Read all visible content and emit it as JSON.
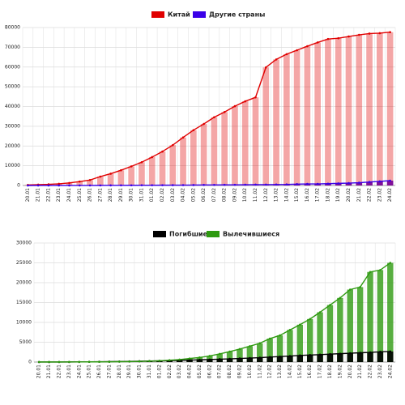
{
  "chart_data": [
    {
      "type": "bar-line",
      "legend": "top",
      "grid": true,
      "categories": [
        "20.01",
        "21.01",
        "22.01",
        "23.01",
        "24.01",
        "25.01",
        "26.01",
        "27.01",
        "28.01",
        "29.01",
        "30.01",
        "31.01",
        "01.02",
        "02.02",
        "03.02",
        "04.02",
        "05.02",
        "06.02",
        "07.02",
        "08.02",
        "09.02",
        "10.02",
        "11.02",
        "12.02",
        "13.02",
        "14.02",
        "15.02",
        "16.02",
        "17.02",
        "18.02",
        "19.02",
        "20.02",
        "21.02",
        "22.02",
        "23.02",
        "24.02"
      ],
      "ylim": [
        0,
        80000
      ],
      "yticks": [
        0,
        10000,
        20000,
        30000,
        40000,
        50000,
        60000,
        70000,
        80000
      ],
      "series": [
        {
          "name": "Китай",
          "color": "#e00000",
          "values": [
            291,
            440,
            571,
            830,
            1287,
            1975,
            2744,
            4515,
            5974,
            7711,
            9692,
            11791,
            14380,
            17205,
            20438,
            24324,
            28018,
            31161,
            34546,
            37198,
            40171,
            42638,
            44653,
            59804,
            63851,
            66492,
            68500,
            70548,
            72436,
            74185,
            74576,
            75465,
            76288,
            76936,
            77150,
            77658
          ]
        },
        {
          "name": "Другие страны",
          "color": "#3a00e8",
          "values": [
            4,
            6,
            9,
            14,
            21,
            29,
            37,
            56,
            68,
            82,
            105,
            132,
            146,
            153,
            159,
            191,
            216,
            270,
            288,
            320,
            350,
            393,
            441,
            447,
            505,
            526,
            683,
            794,
            804,
            924,
            1073,
            1200,
            1402,
            1769,
            2069,
            2459
          ]
        }
      ]
    },
    {
      "type": "bar-line",
      "legend": "top",
      "grid": true,
      "categories": [
        "20.01",
        "21.01",
        "22.01",
        "23.01",
        "24.01",
        "25.01",
        "26.01",
        "27.01",
        "28.01",
        "29.01",
        "30.01",
        "31.01",
        "01.02",
        "02.02",
        "03.02",
        "04.02",
        "05.02",
        "06.02",
        "07.02",
        "08.02",
        "09.02",
        "10.02",
        "11.02",
        "12.02",
        "13.02",
        "14.02",
        "15.02",
        "16.02",
        "17.02",
        "18.02",
        "19.02",
        "20.02",
        "21.02",
        "22.02",
        "23.02",
        "24.02"
      ],
      "ylim": [
        0,
        30000
      ],
      "yticks": [
        0,
        5000,
        10000,
        15000,
        20000,
        25000,
        30000
      ],
      "series": [
        {
          "name": "Погибшие",
          "color": "#000000",
          "values": [
            6,
            9,
            17,
            25,
            41,
            56,
            80,
            106,
            132,
            170,
            213,
            259,
            304,
            361,
            425,
            490,
            562,
            636,
            719,
            806,
            908,
            1016,
            1113,
            1259,
            1380,
            1523,
            1665,
            1770,
            1868,
            2004,
            2118,
            2236,
            2345,
            2442,
            2592,
            2663
          ]
        },
        {
          "name": "Вылечившиеся",
          "color": "#2e9a10",
          "values": [
            25,
            25,
            28,
            34,
            38,
            49,
            51,
            60,
            103,
            124,
            171,
            243,
            328,
            475,
            632,
            892,
            1153,
            1540,
            2050,
            2649,
            3281,
            3996,
            4740,
            5911,
            6723,
            8096,
            9419,
            10844,
            12552,
            14376,
            16155,
            18264,
            18890,
            22699,
            23187,
            24990
          ]
        }
      ]
    }
  ]
}
